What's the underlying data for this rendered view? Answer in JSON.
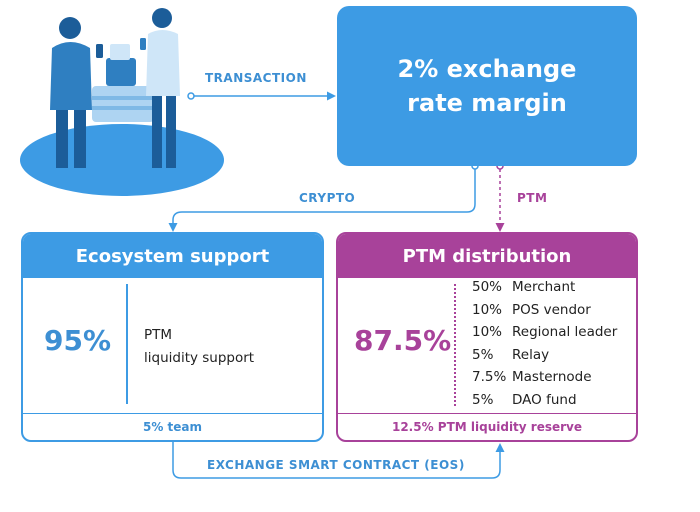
{
  "top_box": {
    "line1": "2% exchange",
    "line2": "rate margin"
  },
  "flows": {
    "transaction": "TRANSACTION",
    "crypto": "CRYPTO",
    "ptm": "PTM",
    "exchange": "EXCHANGE SMART CONTRACT (EOS)"
  },
  "ecosystem": {
    "title": "Ecosystem support",
    "percent": "95%",
    "desc_line1": "PTM",
    "desc_line2": "liquidity support",
    "footer": "5% team"
  },
  "distribution": {
    "title": "PTM distribution",
    "percent": "87.5%",
    "items": [
      {
        "pct": "50%",
        "label": "Merchant"
      },
      {
        "pct": "10%",
        "label": "POS vendor"
      },
      {
        "pct": "10%",
        "label": "Regional leader"
      },
      {
        "pct": "5%",
        "label": "Relay"
      },
      {
        "pct": "7.5%",
        "label": "Masternode"
      },
      {
        "pct": "5%",
        "label": "DAO fund"
      }
    ],
    "footer": "12.5% PTM liquidity reserve"
  },
  "colors": {
    "blue": "#3d9be4",
    "purple": "#a8429a"
  }
}
